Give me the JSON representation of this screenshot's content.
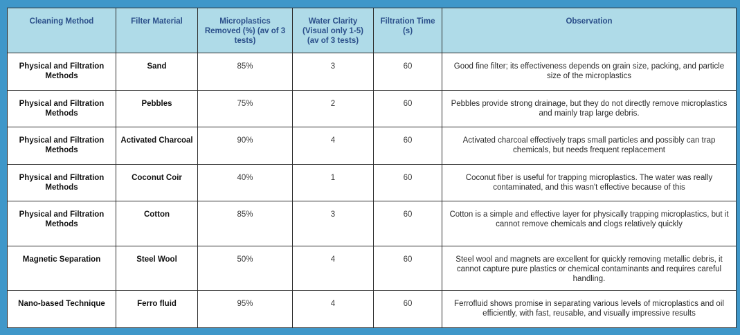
{
  "table": {
    "headers": [
      "Cleaning Method",
      "Filter Material",
      "Microplastics Removed (%) (av of 3 tests)",
      "Water Clarity (Visual only 1-5) (av of 3 tests)",
      "Filtration Time (s)",
      "Observation"
    ],
    "rows": [
      {
        "method": "Physical and Filtration Methods",
        "material": "Sand",
        "removed": "85%",
        "clarity": "3",
        "time": "60",
        "observation": "Good fine filter;  its effectiveness depends on grain size, packing, and particle size of the microplastics"
      },
      {
        "method": "Physical and Filtration Methods",
        "material": "Pebbles",
        "removed": "75%",
        "clarity": "2",
        "time": "60",
        "observation": "Pebbles provide strong drainage, but they do not directly remove microplastics and mainly trap large debris."
      },
      {
        "method": "Physical and Filtration Methods",
        "material": "Activated Charcoal",
        "removed": "90%",
        "clarity": "4",
        "time": "60",
        "observation": "Activated charcoal effectively traps small particles and possibly can trap chemicals, but needs frequent replacement"
      },
      {
        "method": "Physical and Filtration Methods",
        "material": "Coconut Coir",
        "removed": "40%",
        "clarity": "1",
        "time": "60",
        "observation": "Coconut fiber is useful for trapping microplastics. The water was really contaminated, and this wasn't effective because of this"
      },
      {
        "method": "Physical and Filtration Methods",
        "material": "Cotton",
        "removed": "85%",
        "clarity": "3",
        "time": "60",
        "observation": "Cotton is a simple and effective layer for physically trapping microplastics, but it cannot remove chemicals and clogs relatively quickly"
      },
      {
        "method": "Magnetic Separation",
        "material": "Steel Wool",
        "removed": "50%",
        "clarity": "4",
        "time": "60",
        "observation": "Steel wool and magnets are excellent for quickly removing metallic debris, it cannot capture pure plastics or chemical contaminants and requires careful handling."
      },
      {
        "method": "Nano-based Technique",
        "material": "Ferro fluid",
        "removed": "95%",
        "clarity": "4",
        "time": "60",
        "observation": "Ferrofluid shows promise in separating various levels of microplastics and oil efficiently, with fast, reusable, and visually impressive results"
      }
    ]
  },
  "colors": {
    "background": "#3f97c9",
    "header_fill": "#afdbe8",
    "header_text": "#2b4f8a"
  }
}
